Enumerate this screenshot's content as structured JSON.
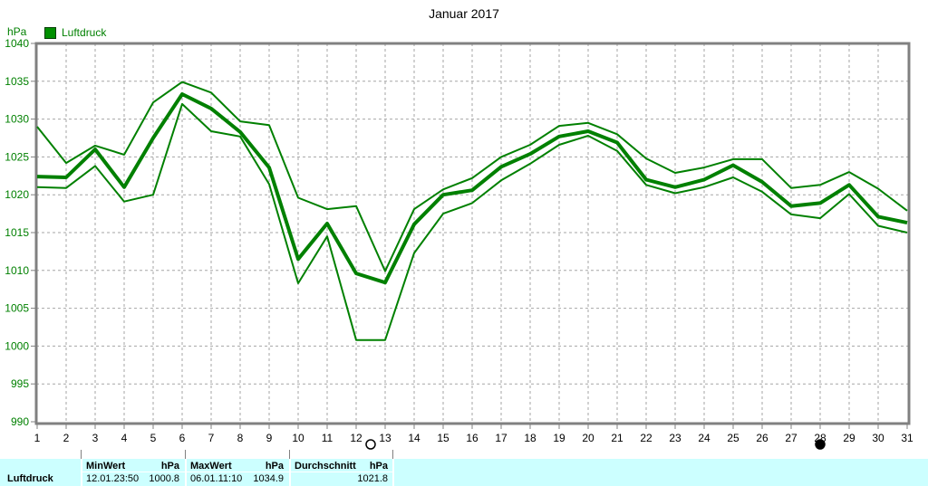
{
  "chart_data": {
    "type": "line",
    "title": "Januar 2017",
    "y_unit": "hPa",
    "legend": [
      {
        "label": "Luftdruck",
        "color": "#008000"
      }
    ],
    "x_tick_labels": [
      "1",
      "2",
      "3",
      "4",
      "5",
      "6",
      "7",
      "8",
      "9",
      "10",
      "11",
      "12",
      "13",
      "14",
      "15",
      "16",
      "17",
      "18",
      "19",
      "20",
      "21",
      "22",
      "23",
      "24",
      "25",
      "26",
      "27",
      "28",
      "29",
      "30",
      "31"
    ],
    "ylim": [
      990,
      1040
    ],
    "y_tick_step": 5,
    "grid": true,
    "series": [
      {
        "name": "max",
        "role": "daily-maximum",
        "stroke_width": 2,
        "values": [
          1029.0,
          1024.2,
          1026.5,
          1025.3,
          1032.2,
          1034.9,
          1033.5,
          1029.7,
          1029.2,
          1019.6,
          1018.1,
          1018.5,
          1009.9,
          1018.1,
          1020.7,
          1022.2,
          1025.0,
          1026.6,
          1029.1,
          1029.5,
          1028.0,
          1024.8,
          1022.9,
          1023.6,
          1024.7,
          1024.7,
          1020.9,
          1021.3,
          1023.0,
          1020.8,
          1017.9
        ]
      },
      {
        "name": "durchschnitt",
        "role": "daily-average",
        "stroke_width": 4,
        "values": [
          1022.4,
          1022.3,
          1026.0,
          1021.0,
          1027.5,
          1033.3,
          1031.4,
          1028.3,
          1023.6,
          1011.5,
          1016.2,
          1009.6,
          1008.4,
          1016.1,
          1020.0,
          1020.6,
          1023.7,
          1025.4,
          1027.7,
          1028.4,
          1026.9,
          1022.0,
          1021.0,
          1022.0,
          1023.9,
          1021.7,
          1018.5,
          1018.9,
          1021.3,
          1017.1,
          1016.3
        ]
      },
      {
        "name": "min",
        "role": "daily-minimum",
        "stroke_width": 2,
        "values": [
          1021.0,
          1020.9,
          1023.8,
          1019.1,
          1020.0,
          1032.0,
          1028.4,
          1027.7,
          1021.4,
          1008.3,
          1014.5,
          1000.8,
          1000.8,
          1012.3,
          1017.5,
          1018.9,
          1021.9,
          1024.1,
          1026.6,
          1027.8,
          1025.8,
          1021.3,
          1020.2,
          1021.0,
          1022.3,
          1020.4,
          1017.4,
          1016.9,
          1020.1,
          1015.9,
          1015.0
        ]
      }
    ],
    "moon_symbols": [
      {
        "day": 12.5,
        "phase": "full-moon",
        "glyph": "○"
      },
      {
        "day": 28,
        "phase": "new-moon",
        "glyph": "●"
      }
    ]
  },
  "stats_table": {
    "row_label": "Luftdruck",
    "min": {
      "header": "MinWert",
      "unit": "hPa",
      "date": "12.01.",
      "time": "23:50",
      "value": "1000.8"
    },
    "max": {
      "header": "MaxWert",
      "unit": "hPa",
      "date": "06.01.",
      "time": "11:10",
      "value": "1034.9"
    },
    "avg": {
      "header": "Durchschnitt",
      "unit": "hPa",
      "value": "1021.8"
    }
  },
  "colors": {
    "line_green": "#008000",
    "label_green": "#008000",
    "axis_gray": "#808080",
    "grid_gray": "#A6A6A6",
    "table_cyan": "#CCFFFF",
    "text_black": "#000000"
  }
}
